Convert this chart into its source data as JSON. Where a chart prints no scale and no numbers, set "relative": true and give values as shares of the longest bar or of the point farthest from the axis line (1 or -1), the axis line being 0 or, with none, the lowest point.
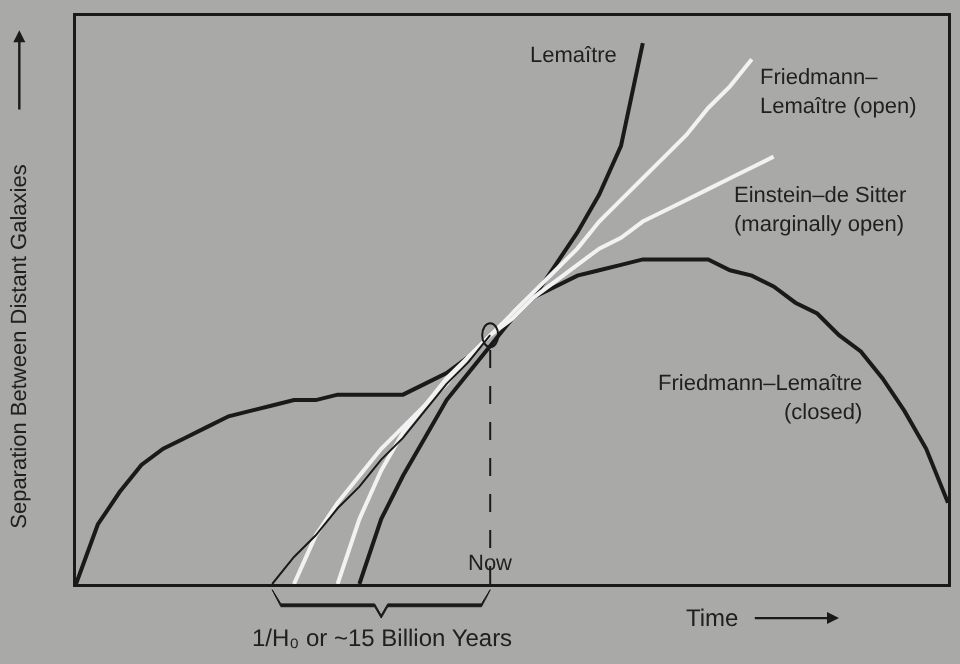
{
  "chart_data": {
    "type": "line",
    "relative": true,
    "xlabel": "Time",
    "ylabel": "Separation Between Distant Galaxies",
    "legend": false,
    "grid": false,
    "categories": [
      null,
      null,
      null,
      null,
      null,
      null,
      null,
      null,
      null,
      null,
      null,
      null,
      null,
      null,
      null,
      null,
      null,
      null,
      null,
      null,
      null,
      null,
      null,
      null,
      null,
      null,
      null,
      null,
      null,
      null,
      null,
      null,
      null,
      null,
      null,
      null,
      null,
      null,
      null,
      null,
      null
    ],
    "series": [
      {
        "name": "Friedmann–Lemaître\n(closed)",
        "color": "#1a1a1a",
        "values": [
          0,
          0.11,
          0.17,
          0.22,
          0.25,
          0.27,
          0.29,
          0.31,
          0.32,
          0.33,
          0.34,
          0.34,
          0.35,
          0.35,
          0.35,
          0.35,
          0.37,
          0.39,
          0.42,
          0.46,
          0.5,
          0.53,
          0.55,
          0.57,
          0.58,
          0.59,
          0.6,
          0.6,
          0.6,
          0.6,
          0.58,
          0.57,
          0.55,
          0.52,
          0.5,
          0.46,
          0.43,
          0.38,
          0.32,
          0.25,
          0.15
        ]
      },
      {
        "name": "Lemaître",
        "color": "#1a1a1a",
        "values": [
          null,
          null,
          null,
          null,
          null,
          null,
          null,
          null,
          null,
          null,
          null,
          null,
          null,
          0,
          0.12,
          0.2,
          0.27,
          0.34,
          0.39,
          0.44,
          0.49,
          0.53,
          0.59,
          0.65,
          0.72,
          0.81,
          1,
          null,
          null,
          null,
          null,
          null,
          null,
          null,
          null,
          null,
          null,
          null,
          null,
          null,
          null
        ]
      },
      {
        "name": "Friedmann–\nLemaître (open)",
        "color": "#f2f2f2",
        "values": [
          null,
          null,
          null,
          null,
          null,
          null,
          null,
          null,
          null,
          null,
          null,
          null,
          0,
          0.12,
          0.21,
          0.28,
          0.33,
          0.37,
          0.42,
          0.46,
          0.5,
          0.54,
          0.58,
          0.62,
          0.67,
          0.71,
          0.75,
          0.79,
          0.83,
          0.88,
          0.92,
          0.97,
          null,
          null,
          null,
          null,
          null,
          null,
          null,
          null,
          null
        ]
      },
      {
        "name": "Einstein–de Sitter\n(marginally open)",
        "color": "#f2f2f2",
        "values": [
          null,
          null,
          null,
          null,
          null,
          null,
          null,
          null,
          null,
          null,
          0,
          0.09,
          0.15,
          0.2,
          0.25,
          0.29,
          0.33,
          0.38,
          0.42,
          0.46,
          0.49,
          0.53,
          0.56,
          0.59,
          0.62,
          0.64,
          0.67,
          0.69,
          0.71,
          0.73,
          0.75,
          0.77,
          0.79,
          null,
          null,
          null,
          null,
          null,
          null,
          null,
          null
        ]
      },
      {
        "color": "#1a1a1a",
        "values": [
          null,
          null,
          null,
          null,
          null,
          null,
          null,
          null,
          null,
          0,
          0.05,
          0.09,
          0.14,
          0.18,
          0.23,
          0.27,
          0.32,
          0.37,
          0.41,
          0.46,
          null,
          null,
          null,
          null,
          null,
          null,
          null,
          null,
          null,
          null,
          null,
          null,
          null,
          null,
          null,
          null,
          null,
          null,
          null,
          null,
          null
        ]
      }
    ],
    "annotations": [
      "Now",
      "1/H₀ or ~15 Billion Years"
    ]
  }
}
